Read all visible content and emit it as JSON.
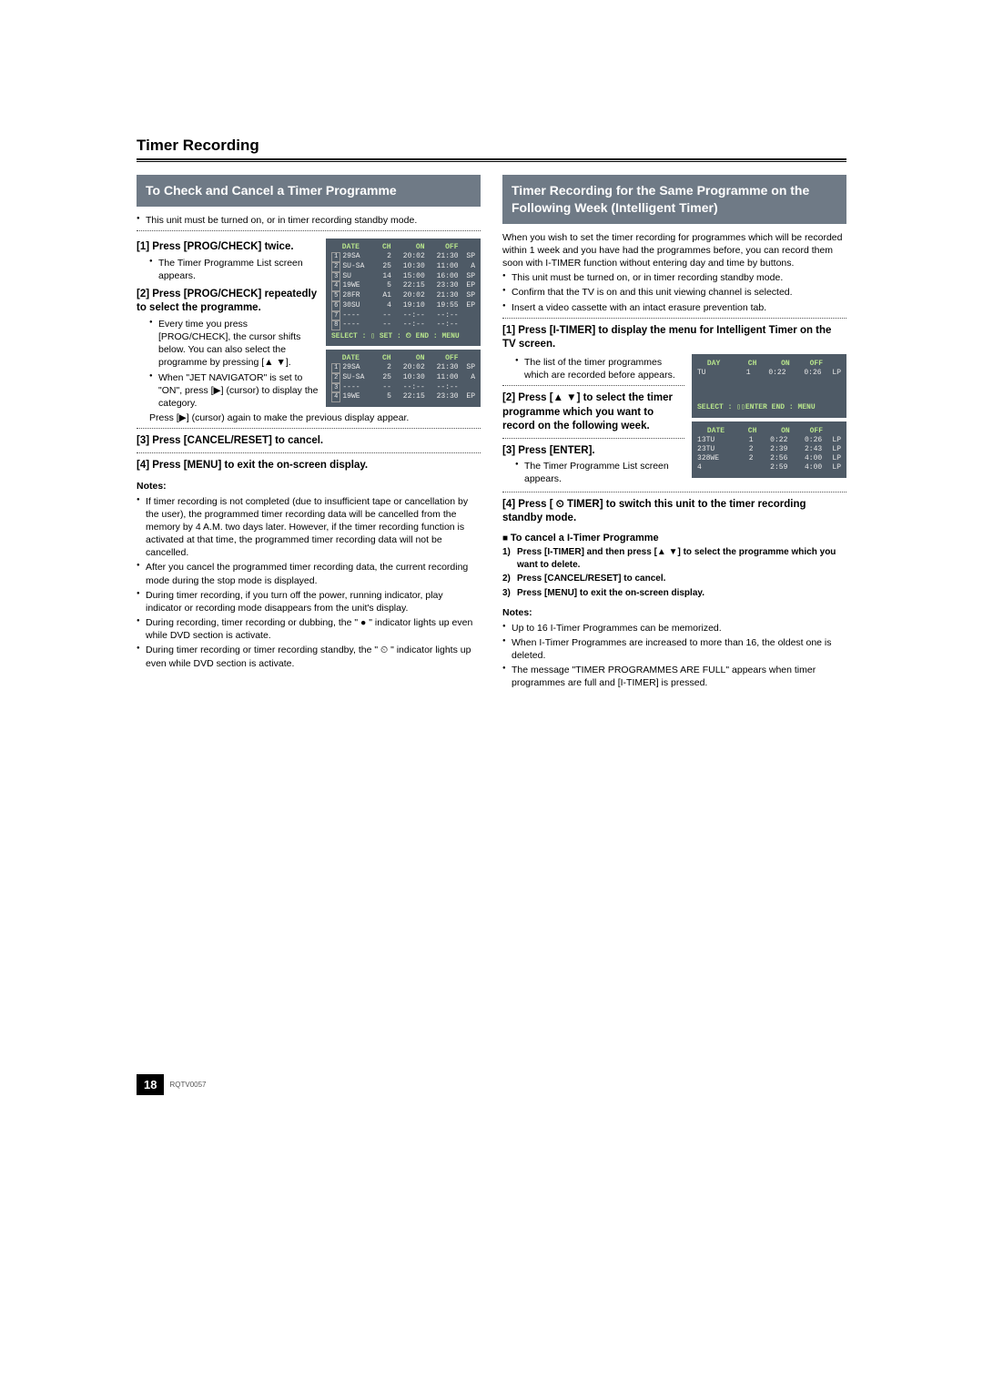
{
  "colors": {
    "section_bg": "#6f7a86",
    "section_fg": "#ffffff",
    "screen_bg": "#4e5a66",
    "screen_fg": "#e8e8e8",
    "screen_accent": "#b7e48c"
  },
  "typography": {
    "heading_pt": 17,
    "section_pt": 14,
    "step_pt": 11.5,
    "body_pt": 10.5,
    "screen_font": "Courier New"
  },
  "page_title": "Timer Recording",
  "page_number": "18",
  "doc_code": "RQTV0057",
  "left": {
    "section_title": "To Check and Cancel a Timer Programme",
    "intro": "This unit must be turned on, or in timer recording standby mode.",
    "step1": "[1] Press [PROG/CHECK] twice.",
    "step1_note": "The Timer Programme List screen appears.",
    "step2": "[2] Press [PROG/CHECK] repeatedly to select the programme.",
    "step2_subA": "Every time you press [PROG/CHECK], the cursor shifts below. You can also select the programme by pressing [▲ ▼].",
    "step2_subB": "When \"JET NAVIGATOR\" is set to \"ON\", press [▶] (cursor) to display the category.",
    "step2_subC": "Press [▶] (cursor) again to make the previous display appear.",
    "step3": "[3] Press [CANCEL/RESET] to cancel.",
    "step4": "[4] Press [MENU] to exit the on-screen display.",
    "notes_label": "Notes:",
    "notes": [
      "If timer recording is not completed (due to insufficient tape or cancellation by the user), the programmed timer recording data will be cancelled from the memory by 4 A.M. two days later. However, if the timer recording function is activated at that time, the programmed timer recording data will not be cancelled.",
      "After you cancel the programmed timer recording data, the current recording mode during the stop mode is displayed.",
      "During timer recording, if you turn off the power, running indicator, play indicator or recording mode disappears from the unit's display.",
      "During recording, timer recording or dubbing, the \" ● \" indicator lights up even while DVD section is activate.",
      "During timer recording or timer recording standby, the \" ⏲ \" indicator lights up even while DVD section is activate."
    ],
    "screen1": {
      "cols": [
        "DATE",
        "CH",
        "ON",
        "OFF",
        ""
      ],
      "rows": [
        [
          "1",
          "29SA",
          "2",
          "20:02",
          "21:30",
          "SP"
        ],
        [
          "2",
          "SU-SA",
          "25",
          "10:30",
          "11:00",
          "A"
        ],
        [
          "3",
          "SU",
          "14",
          "15:00",
          "16:00",
          "SP"
        ],
        [
          "4",
          "19WE",
          "5",
          "22:15",
          "23:30",
          "EP"
        ],
        [
          "5",
          "28FR",
          "A1",
          "20:02",
          "21:30",
          "SP"
        ],
        [
          "6",
          "30SU",
          "4",
          "19:10",
          "19:55",
          "EP"
        ],
        [
          "7",
          "----",
          "--",
          "--:--",
          "--:--",
          ""
        ],
        [
          "8",
          "----",
          "--",
          "--:--",
          "--:--",
          ""
        ]
      ],
      "footer": "SELECT : ▯   SET : ⏲   END : MENU"
    },
    "screen2": {
      "cols": [
        "DATE",
        "CH",
        "ON",
        "OFF",
        ""
      ],
      "rows": [
        [
          "1",
          "29SA",
          "2",
          "20:02",
          "21:30",
          "SP"
        ],
        [
          "2",
          "SU-SA",
          "25",
          "10:30",
          "11:00",
          "A"
        ],
        [
          "3",
          "----",
          "--",
          "--:--",
          "--:--",
          ""
        ],
        [
          "4",
          "19WE",
          "5",
          "22:15",
          "23:30",
          "EP"
        ]
      ]
    }
  },
  "right": {
    "section_title": "Timer Recording for the Same Programme on the Following Week (Intelligent Timer)",
    "intro": "When you wish to set the timer recording for programmes which will be recorded within 1 week and you have had the programmes before, you can record them soon with I-TIMER function without entering day and time by buttons.",
    "intro_bullets": [
      "This unit must be turned on, or in timer recording standby mode.",
      "Confirm that the TV is on and this unit viewing channel is selected.",
      "Insert a video cassette with an intact erasure prevention tab."
    ],
    "step1": "[1] Press [I-TIMER] to display the menu for Intelligent Timer on the TV screen.",
    "step1_note": "The list of the timer programmes which are recorded before appears.",
    "step2": "[2] Press [▲ ▼] to select the timer programme which you want to record on the following week.",
    "step3": "[3] Press [ENTER].",
    "step3_note": "The Timer Programme List screen appears.",
    "step4": "[4] Press  [ ⏲ TIMER] to switch this unit to the timer recording standby mode.",
    "cancel_label": "To cancel a I-Timer Programme",
    "cancel_steps": [
      {
        "n": "1)",
        "t": "Press [I-TIMER] and then press [▲ ▼] to select the programme which you want to delete."
      },
      {
        "n": "2)",
        "t": "Press [CANCEL/RESET] to cancel."
      },
      {
        "n": "3)",
        "t": "Press [MENU] to exit the on-screen display."
      }
    ],
    "notes_label": "Notes:",
    "notes": [
      "Up to 16 I-Timer Programmes can be memorized.",
      "When I-Timer Programmes are increased to more than 16, the oldest one is deleted.",
      "The message \"TIMER PROGRAMMES ARE FULL\" appears when timer programmes are full and [I-TIMER] is pressed."
    ],
    "screen_top": {
      "cols": [
        "DAY",
        "CH",
        "ON",
        "OFF",
        ""
      ],
      "rows": [
        [
          "",
          "  TU",
          "1",
          "0:22",
          "0:26",
          "LP"
        ]
      ],
      "footer": "SELECT : ▯▯ENTER        END : MENU"
    },
    "screen_bottom": {
      "cols": [
        "DATE",
        "CH",
        "ON",
        "OFF",
        ""
      ],
      "rows": [
        [
          "1",
          " 3TU",
          "1",
          "0:22",
          "0:26",
          "LP"
        ],
        [
          "2",
          " 3TU",
          "2",
          "2:39",
          "2:43",
          "LP"
        ],
        [
          "3",
          "28WE",
          "2",
          "2:56",
          "4:00",
          "LP"
        ],
        [
          "4",
          "    ",
          "",
          "2:59",
          "4:00",
          "LP"
        ]
      ]
    }
  }
}
